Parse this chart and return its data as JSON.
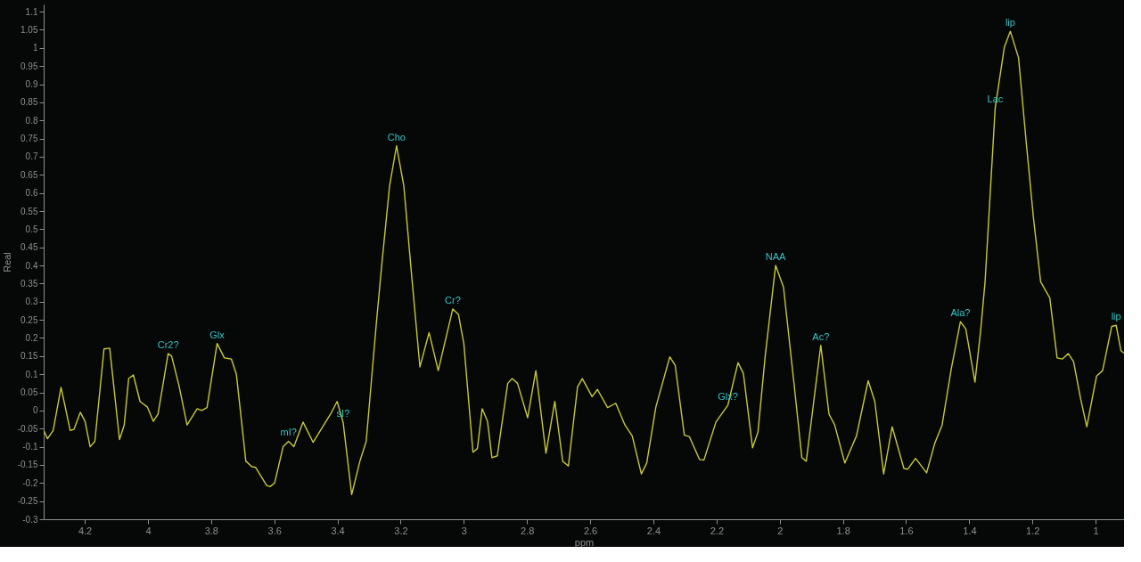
{
  "chart_data": {
    "type": "line",
    "xlabel": "ppm",
    "ylabel": "Real",
    "xlim": [
      4.33,
      0.91
    ],
    "ylim": [
      -0.3,
      1.12
    ],
    "xticks": [
      4.2,
      4,
      3.8,
      3.6,
      3.4,
      3.2,
      3,
      2.8,
      2.6,
      2.4,
      2.2,
      2,
      1.8,
      1.6,
      1.4,
      1.2,
      1
    ],
    "yticks": [
      -0.3,
      -0.25,
      -0.2,
      -0.15,
      -0.1,
      -0.05,
      0,
      0.05,
      0.1,
      0.15,
      0.2,
      0.25,
      0.3,
      0.35,
      0.4,
      0.45,
      0.5,
      0.55,
      0.6,
      0.65,
      0.7,
      0.75,
      0.8,
      0.85,
      0.9,
      0.95,
      1,
      1.05,
      1.1
    ],
    "grid": false,
    "marker": "none",
    "line_style": "solid",
    "series": [
      {
        "color": "#c8c832",
        "x": [
          4.33,
          4.318,
          4.3,
          4.275,
          4.246,
          4.234,
          4.214,
          4.199,
          4.183,
          4.168,
          4.139,
          4.121,
          4.09,
          4.075,
          4.061,
          4.046,
          4.025,
          4.002,
          3.983,
          3.968,
          3.936,
          3.925,
          3.902,
          3.876,
          3.844,
          3.83,
          3.813,
          3.781,
          3.758,
          3.736,
          3.72,
          3.69,
          3.671,
          3.659,
          3.624,
          3.613,
          3.599,
          3.572,
          3.555,
          3.538,
          3.509,
          3.477,
          3.422,
          3.401,
          3.382,
          3.355,
          3.329,
          3.309,
          3.277,
          3.26,
          3.235,
          3.213,
          3.19,
          3.168,
          3.139,
          3.11,
          3.081,
          3.035,
          3.017,
          3.0,
          2.971,
          2.957,
          2.942,
          2.925,
          2.911,
          2.894,
          2.861,
          2.847,
          2.83,
          2.798,
          2.772,
          2.74,
          2.712,
          2.687,
          2.669,
          2.64,
          2.625,
          2.594,
          2.577,
          2.545,
          2.519,
          2.49,
          2.467,
          2.438,
          2.421,
          2.392,
          2.348,
          2.331,
          2.302,
          2.286,
          2.254,
          2.24,
          2.202,
          2.164,
          2.132,
          2.115,
          2.086,
          2.069,
          2.046,
          2.013,
          1.988,
          1.953,
          1.93,
          1.916,
          1.893,
          1.87,
          1.844,
          1.826,
          1.794,
          1.757,
          1.72,
          1.699,
          1.671,
          1.644,
          1.607,
          1.595,
          1.57,
          1.535,
          1.509,
          1.486,
          1.457,
          1.428,
          1.411,
          1.382,
          1.364,
          1.35,
          1.318,
          1.289,
          1.27,
          1.244,
          1.219,
          1.197,
          1.174,
          1.145,
          1.122,
          1.105,
          1.087,
          1.07,
          1.047,
          1.028,
          0.997,
          0.978,
          0.949,
          0.935,
          0.92,
          0.91
        ],
        "values": [
          -0.055,
          -0.078,
          -0.055,
          0.064,
          -0.055,
          -0.052,
          -0.005,
          -0.03,
          -0.1,
          -0.085,
          0.17,
          0.172,
          -0.08,
          -0.04,
          0.088,
          0.098,
          0.025,
          0.01,
          -0.03,
          -0.01,
          0.157,
          0.15,
          0.07,
          -0.04,
          0.005,
          0.0,
          0.008,
          0.185,
          0.145,
          0.142,
          0.1,
          -0.14,
          -0.155,
          -0.157,
          -0.207,
          -0.21,
          -0.2,
          -0.1,
          -0.085,
          -0.1,
          -0.032,
          -0.088,
          -0.01,
          0.025,
          -0.033,
          -0.232,
          -0.14,
          -0.085,
          0.24,
          0.4,
          0.62,
          0.73,
          0.62,
          0.4,
          0.12,
          0.215,
          0.11,
          0.28,
          0.265,
          0.185,
          -0.115,
          -0.105,
          0.005,
          -0.03,
          -0.13,
          -0.125,
          0.075,
          0.088,
          0.075,
          -0.02,
          0.11,
          -0.118,
          0.025,
          -0.14,
          -0.153,
          0.065,
          0.088,
          0.038,
          0.058,
          0.008,
          0.02,
          -0.04,
          -0.07,
          -0.175,
          -0.145,
          0.01,
          0.148,
          0.125,
          -0.068,
          -0.072,
          -0.135,
          -0.137,
          -0.032,
          0.015,
          0.132,
          0.102,
          -0.103,
          -0.06,
          0.15,
          0.4,
          0.34,
          0.06,
          -0.13,
          -0.14,
          0.02,
          0.18,
          -0.01,
          -0.04,
          -0.145,
          -0.07,
          0.082,
          0.025,
          -0.175,
          -0.045,
          -0.16,
          -0.162,
          -0.132,
          -0.172,
          -0.09,
          -0.04,
          0.115,
          0.245,
          0.225,
          0.078,
          0.22,
          0.355,
          0.834,
          1.002,
          1.046,
          0.973,
          0.733,
          0.533,
          0.355,
          0.31,
          0.145,
          0.142,
          0.157,
          0.135,
          0.03,
          -0.045,
          0.095,
          0.11,
          0.232,
          0.235,
          0.165,
          0.158
        ]
      }
    ],
    "annotations": [
      {
        "text": "Cr2?",
        "x": 3.936,
        "y": 0.157
      },
      {
        "text": "Glx",
        "x": 3.781,
        "y": 0.185
      },
      {
        "text": "mI?",
        "x": 3.555,
        "y": -0.085
      },
      {
        "text": "sI?",
        "x": 3.382,
        "y": -0.033
      },
      {
        "text": "Cho",
        "x": 3.213,
        "y": 0.73
      },
      {
        "text": "Cr?",
        "x": 3.035,
        "y": 0.28
      },
      {
        "text": "Glx?",
        "x": 2.164,
        "y": 0.015
      },
      {
        "text": "NAA",
        "x": 2.013,
        "y": 0.4
      },
      {
        "text": "Ac?",
        "x": 1.87,
        "y": 0.18
      },
      {
        "text": "Ala?",
        "x": 1.428,
        "y": 0.245
      },
      {
        "text": "Lac",
        "x": 1.318,
        "y": 0.834
      },
      {
        "text": "lip",
        "x": 1.27,
        "y": 1.046
      },
      {
        "text": "lip",
        "x": 0.935,
        "y": 0.235
      }
    ]
  }
}
